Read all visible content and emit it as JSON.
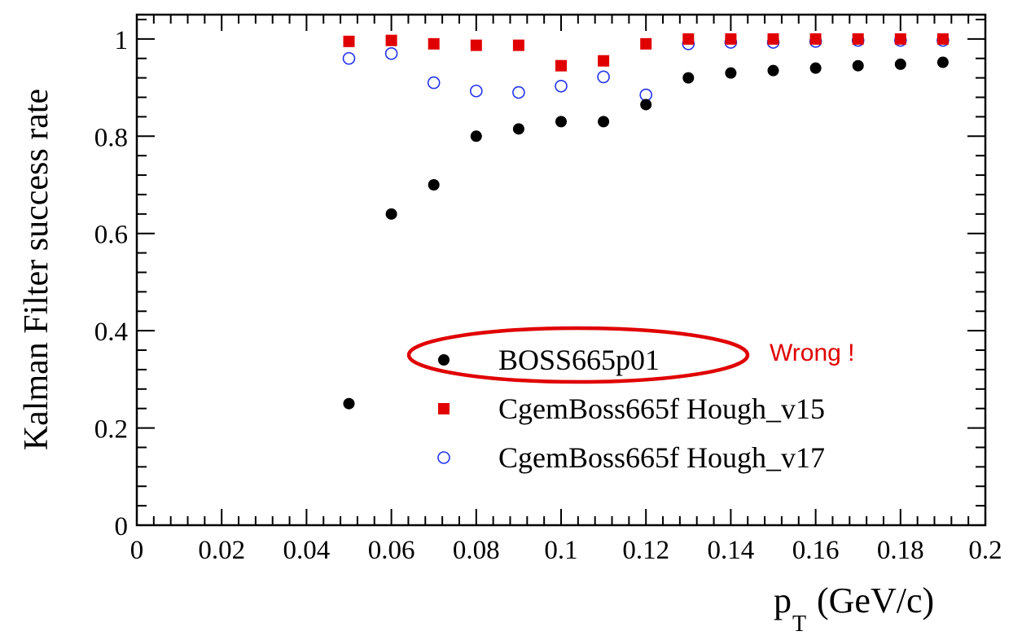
{
  "chart_data": {
    "type": "scatter",
    "xlabel": "p",
    "xlabel_sub": "T",
    "xlabel_unit": "(GeV/c)",
    "ylabel": "Kalman Filter success rate",
    "xlim": [
      0,
      0.2
    ],
    "ylim": [
      0,
      1.05
    ],
    "x_ticks": [
      "0",
      "0.02",
      "0.04",
      "0.06",
      "0.08",
      "0.1",
      "0.12",
      "0.14",
      "0.16",
      "0.18",
      "0.2"
    ],
    "y_ticks": [
      "0",
      "0.2",
      "0.4",
      "0.6",
      "0.8",
      "1"
    ],
    "grid": false,
    "legend_position": "center-right",
    "series": [
      {
        "name": "BOSS665p01",
        "marker": "filled-circle",
        "color": "#000000",
        "x": [
          0.05,
          0.06,
          0.07,
          0.08,
          0.09,
          0.1,
          0.11,
          0.12,
          0.13,
          0.14,
          0.15,
          0.16,
          0.17,
          0.18,
          0.19
        ],
        "y": [
          0.25,
          0.64,
          0.7,
          0.8,
          0.815,
          0.83,
          0.83,
          0.865,
          0.92,
          0.93,
          0.935,
          0.94,
          0.945,
          0.948,
          0.952
        ]
      },
      {
        "name": "CgemBoss665f Hough_v15",
        "marker": "filled-square",
        "color": "#e00000",
        "x": [
          0.05,
          0.06,
          0.07,
          0.08,
          0.09,
          0.1,
          0.11,
          0.12,
          0.13,
          0.14,
          0.15,
          0.16,
          0.17,
          0.18,
          0.19
        ],
        "y": [
          0.995,
          0.997,
          0.99,
          0.987,
          0.987,
          0.945,
          0.955,
          0.99,
          1.0,
          1.0,
          1.0,
          1.0,
          1.0,
          1.0,
          1.0
        ]
      },
      {
        "name": "CgemBoss665f Hough_v17",
        "marker": "open-circle",
        "color": "#2233ee",
        "x": [
          0.05,
          0.06,
          0.07,
          0.08,
          0.09,
          0.1,
          0.11,
          0.12,
          0.13,
          0.14,
          0.15,
          0.16,
          0.17,
          0.18,
          0.19
        ],
        "y": [
          0.96,
          0.97,
          0.91,
          0.893,
          0.89,
          0.903,
          0.922,
          0.885,
          0.99,
          0.993,
          0.993,
          0.995,
          0.997,
          0.997,
          0.997
        ]
      }
    ],
    "annotations": [
      {
        "text": "Wrong !",
        "color": "#e00000",
        "target_series": "BOSS665p01"
      }
    ]
  }
}
